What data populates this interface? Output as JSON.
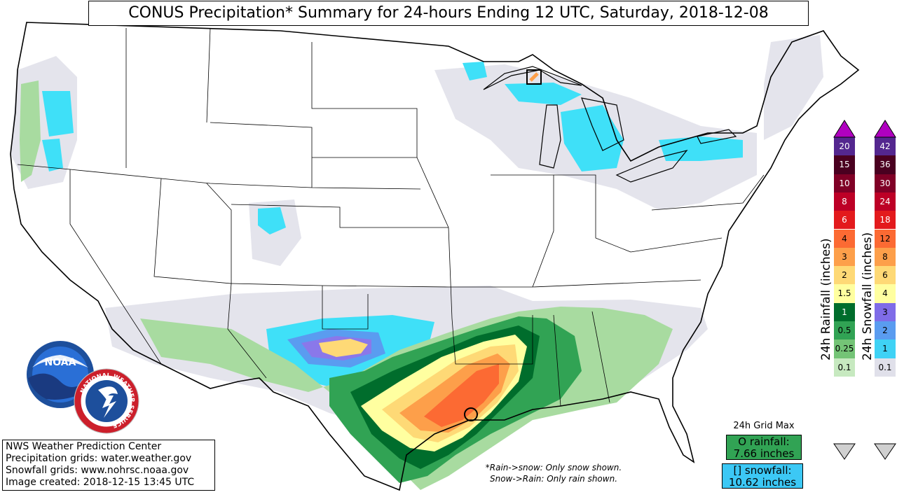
{
  "title": "CONUS Precipitation* Summary for 24-hours Ending 12 UTC, Saturday, 2018-12-08",
  "credits": [
    "NWS Weather Prediction Center",
    "Precipitation grids: water.weather.gov",
    "Snowfall grids: www.nohrsc.noaa.gov",
    "Image created: 2018-12-15 13:45 UTC"
  ],
  "note": {
    "line1": "*Rain->snow: Only snow shown.",
    "line2": "Snow->Rain: Only rain shown."
  },
  "grid_max": {
    "title": "24h Grid Max",
    "rainfall_label": "O rainfall:",
    "rainfall_value": "7.66 inches",
    "snowfall_label": "[] snowfall:",
    "snowfall_value": "10.62 inches",
    "rainfall_color": "#31a354",
    "snowfall_color": "#3cc8f5"
  },
  "logos": {
    "noaa_text": "NOAA",
    "nws_ring_text": "NATIONAL WEATHER SERVICE"
  },
  "rain_legend": {
    "label": "24h Rainfall (inches)",
    "ticks": [
      "0.1",
      "0.25",
      "0.5",
      "1",
      "1.5",
      "2",
      "3",
      "4",
      "6",
      "8",
      "10",
      "15",
      "20"
    ],
    "colors": [
      "#c7e9c0",
      "#74c476",
      "#31a354",
      "#006d2c",
      "#ffffa0",
      "#fed976",
      "#fd9f4a",
      "#fc6a33",
      "#e31a1c",
      "#bd0026",
      "#800026",
      "#4a0020",
      "#54278f"
    ],
    "arrow_top_color": "#b000c0",
    "arrow_bottom_color": "#d0d0d0"
  },
  "snow_legend": {
    "label": "24h Snowfall (inches)",
    "ticks": [
      "0.1",
      "1",
      "2",
      "3",
      "4",
      "6",
      "8",
      "12",
      "18",
      "24",
      "30",
      "36",
      "42"
    ],
    "colors": [
      "#e0e0ea",
      "#3fd2f5",
      "#5a9cf0",
      "#7f6ce8",
      "#ffffa0",
      "#fed976",
      "#fd9f4a",
      "#fc6a33",
      "#e31a1c",
      "#bd0026",
      "#800026",
      "#4a0020",
      "#54278f"
    ],
    "arrow_top_color": "#b000c0",
    "arrow_bottom_color": "#d0d0d0"
  },
  "precip_colors": {
    "trace": "#e4e4ec",
    "snow_light": "#3fe0f8",
    "snow_mid": "#5a9cf0",
    "snow_heavy": "#8a78ea",
    "rain_1": "#a8dba0",
    "rain_2": "#74c476",
    "rain_3": "#31a354",
    "rain_4": "#006d2c",
    "rain_5": "#ffffa0",
    "rain_6": "#fed976",
    "rain_7": "#fd9f4a",
    "rain_8": "#fc6a33"
  }
}
